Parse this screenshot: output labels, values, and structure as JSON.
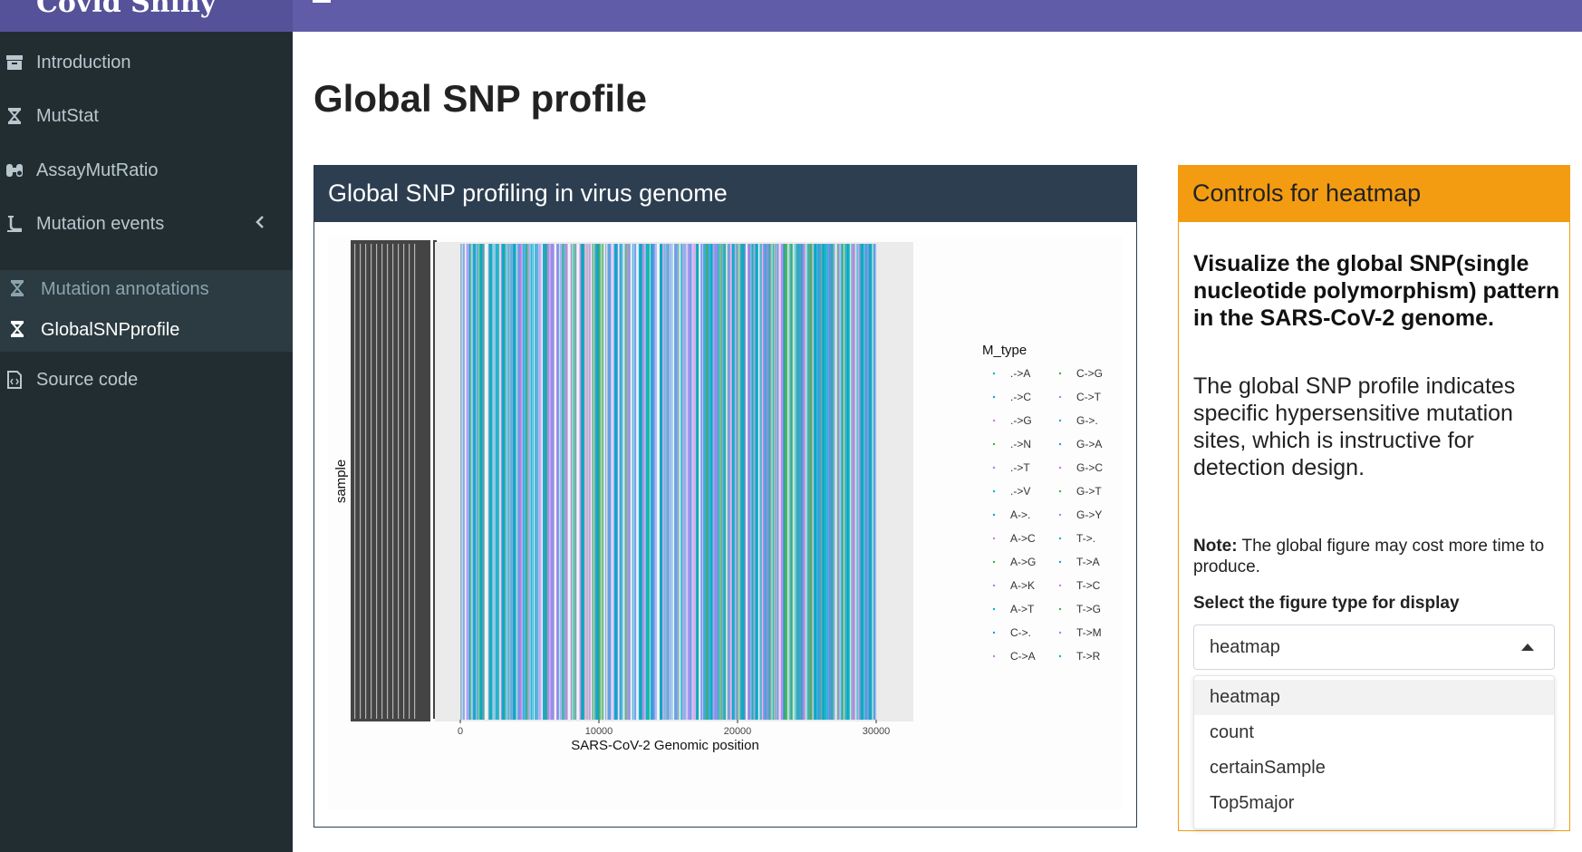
{
  "app": {
    "title": "Covid Shiny"
  },
  "sidebar": {
    "items": [
      {
        "label": "Introduction",
        "icon": "archive-icon"
      },
      {
        "label": "MutStat",
        "icon": "hourglass-icon"
      },
      {
        "label": "AssayMutRatio",
        "icon": "binoculars-icon"
      },
      {
        "label": "Mutation events",
        "icon": "flask-icon"
      }
    ],
    "subitems": [
      {
        "label": "Mutation annotations",
        "icon": "hourglass-icon"
      },
      {
        "label": "GlobalSNPprofile",
        "icon": "hourglass-icon",
        "active": true
      }
    ],
    "source": {
      "label": "Source code",
      "icon": "file-code-icon"
    }
  },
  "page": {
    "title": "Global SNP profile"
  },
  "plot_box": {
    "title": "Global SNP profiling in virus genome"
  },
  "chart_data": {
    "type": "heatmap",
    "xlabel": "SARS-CoV-2 Genomic position",
    "ylabel": "sample",
    "xlim": [
      0,
      30000
    ],
    "x_ticks": [
      "0",
      "10000",
      "20000",
      "30000"
    ],
    "legend_title": "M_type",
    "legend_position": "right",
    "legend_entries": [
      ".->A",
      ".->C",
      ".->G",
      ".->N",
      ".->T",
      ".->V",
      "A->.",
      "A->C",
      "A->G",
      "A->K",
      "A->T",
      "C->.",
      "C->A",
      "C->G",
      "C->T",
      "G->.",
      "G->A",
      "G->C",
      "G->T",
      "G->Y",
      "T->.",
      "T->A",
      "T->C",
      "T->G",
      "T->M",
      "T->R"
    ],
    "dominant_colors": [
      "#00b4c8",
      "#1a9fd6",
      "#cc79e6",
      "#3fae49",
      "#8c8cf0"
    ]
  },
  "controls": {
    "title": "Controls for heatmap",
    "description_bold": "Visualize the global SNP(single nucleotide polymorphism) pattern in the SARS-CoV-2 genome.",
    "description": "The global SNP profile indicates specific hypersensitive mutation sites, which is instructive for detection design.",
    "note_label": "Note:",
    "note_text": " The global figure may cost more time to produce.",
    "select_label": "Select the figure type for display",
    "selected": "heatmap",
    "options": [
      "heatmap",
      "count",
      "certainSample",
      "Top5major"
    ]
  },
  "colors": {
    "header": "#605ca8",
    "sidebar": "#222d32",
    "box_dark": "#2c3e50",
    "box_warning": "#f39c12"
  }
}
